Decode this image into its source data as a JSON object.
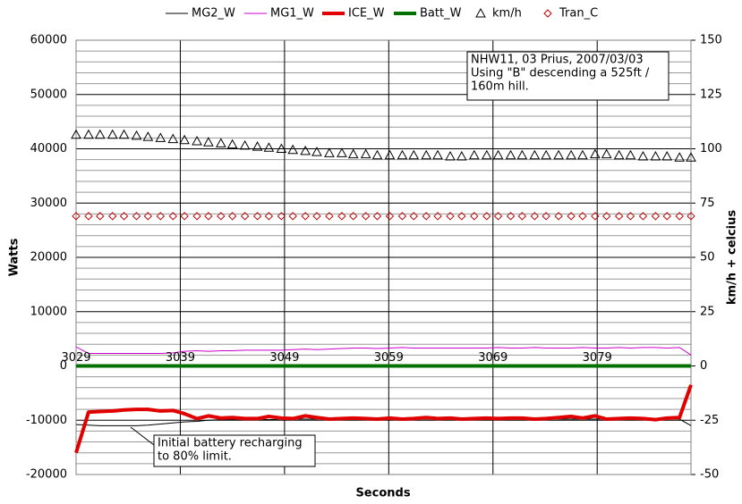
{
  "chart_data": {
    "type": "line",
    "x_label": "Seconds",
    "y_label": "Watts",
    "y2_label": "km/h + celcius",
    "x": [
      3029.0,
      3030.2,
      3031.3,
      3032.5,
      3033.6,
      3034.8,
      3035.9,
      3037.1,
      3038.3,
      3039.4,
      3040.6,
      3041.7,
      3042.9,
      3044.0,
      3045.2,
      3046.4,
      3047.5,
      3048.7,
      3049.8,
      3051.0,
      3052.1,
      3053.3,
      3054.5,
      3055.6,
      3056.8,
      3057.9,
      3059.1,
      3060.3,
      3061.4,
      3062.6,
      3063.7,
      3064.9,
      3066.0,
      3067.2,
      3068.4,
      3069.5,
      3070.7,
      3071.8,
      3073.0,
      3074.1,
      3075.3,
      3076.5,
      3077.6,
      3078.8,
      3079.9,
      3081.1,
      3082.2,
      3083.4,
      3084.6,
      3085.7,
      3086.9,
      3088.0
    ],
    "series": [
      {
        "name": "MG2_W",
        "color": "#000000",
        "style": "line",
        "width": 1,
        "values": [
          -10800,
          -10900,
          -11000,
          -11000,
          -11000,
          -11000,
          -10900,
          -10700,
          -10500,
          -10300,
          -10200,
          -10000,
          -9900,
          -9900,
          -9800,
          -9800,
          -9900,
          -9800,
          -9800,
          -9800,
          -9800,
          -9800,
          -9800,
          -9800,
          -9800,
          -9800,
          -9900,
          -9800,
          -9800,
          -9800,
          -9800,
          -9800,
          -9800,
          -9900,
          -9800,
          -9800,
          -9800,
          -9800,
          -9800,
          -9800,
          -9800,
          -9800,
          -9800,
          -9800,
          -9800,
          -9800,
          -9900,
          -9800,
          -9800,
          -9800,
          -9800,
          -11000
        ]
      },
      {
        "name": "MG1_W",
        "color": "#cc00cc",
        "style": "line",
        "width": 1,
        "values": [
          3500,
          2300,
          2300,
          2300,
          2300,
          2300,
          2300,
          2300,
          2400,
          2700,
          2800,
          2700,
          2800,
          2800,
          2900,
          2900,
          2900,
          2900,
          3000,
          3100,
          3000,
          3100,
          3200,
          3300,
          3300,
          3200,
          3300,
          3400,
          3300,
          3300,
          3300,
          3300,
          3300,
          3300,
          3300,
          3400,
          3300,
          3300,
          3400,
          3300,
          3300,
          3300,
          3400,
          3300,
          3300,
          3400,
          3300,
          3400,
          3400,
          3300,
          3400,
          2000
        ]
      },
      {
        "name": "ICE_W",
        "color": "#e00000",
        "style": "line",
        "width": 4,
        "values": [
          -16000,
          -8500,
          -8400,
          -8300,
          -8100,
          -8000,
          -8000,
          -8300,
          -8200,
          -8800,
          -9700,
          -9200,
          -9600,
          -9500,
          -9700,
          -9700,
          -9300,
          -9600,
          -9700,
          -9200,
          -9500,
          -9800,
          -9700,
          -9600,
          -9700,
          -9800,
          -9600,
          -9800,
          -9700,
          -9500,
          -9700,
          -9600,
          -9800,
          -9700,
          -9600,
          -9700,
          -9600,
          -9600,
          -9800,
          -9700,
          -9500,
          -9300,
          -9600,
          -9200,
          -9800,
          -9700,
          -9600,
          -9700,
          -9900,
          -9600,
          -9500,
          -3500
        ]
      },
      {
        "name": "Batt_W",
        "color": "#007000",
        "style": "line",
        "width": 4,
        "values": [
          0,
          0,
          0,
          0,
          0,
          0,
          0,
          0,
          0,
          0,
          0,
          0,
          0,
          0,
          0,
          0,
          0,
          0,
          0,
          0,
          0,
          0,
          0,
          0,
          0,
          0,
          0,
          0,
          0,
          0,
          0,
          0,
          0,
          0,
          0,
          0,
          0,
          0,
          0,
          0,
          0,
          0,
          0,
          0,
          0,
          0,
          0,
          0,
          0,
          0,
          0,
          0
        ]
      },
      {
        "name": "km/h",
        "color": "#000000",
        "style": "triangle",
        "axis": "y2",
        "values": [
          106.5,
          106.5,
          106.5,
          106.5,
          106.5,
          106,
          105.5,
          105,
          104.5,
          104,
          103.5,
          103,
          102.5,
          102,
          101.5,
          101,
          100.5,
          100,
          99.5,
          99,
          98.5,
          98,
          98,
          97.5,
          97.5,
          97,
          97,
          97,
          97,
          97,
          97,
          96.5,
          96.5,
          97,
          97,
          97,
          97,
          97,
          97,
          97,
          97,
          97,
          97,
          97.5,
          97.5,
          97,
          97,
          96.5,
          96.5,
          96.5,
          96,
          96
        ]
      },
      {
        "name": "Tran_C",
        "color": "#c00000",
        "style": "diamond",
        "axis": "y2",
        "values": [
          69,
          69,
          69,
          69,
          69,
          69,
          69,
          69,
          69,
          69,
          69,
          69,
          69,
          69,
          69,
          69,
          69,
          69,
          69,
          69,
          69,
          69,
          69,
          69,
          69,
          69,
          69,
          69,
          69,
          69,
          69,
          69,
          69,
          69,
          69,
          69,
          69,
          69,
          69,
          69,
          69,
          69,
          69,
          69,
          69,
          69,
          69,
          69,
          69,
          69,
          69,
          69
        ]
      }
    ],
    "xlim": [
      3029,
      3088
    ],
    "xticks": [
      3029,
      3039,
      3049,
      3059,
      3069,
      3079
    ],
    "ylim": [
      -20000,
      60000
    ],
    "yticks": [
      -20000,
      -10000,
      0,
      10000,
      20000,
      30000,
      40000,
      50000,
      60000
    ],
    "y2lim": [
      -50,
      150
    ],
    "y2ticks": [
      -50,
      -25,
      0,
      25,
      50,
      75,
      100,
      125,
      150
    ],
    "grid": true,
    "legend": "top",
    "annotations": [
      {
        "lines": [
          "NHW11, 03 Prius, 2007/03/03",
          "Using \"B\" descending a 525ft /",
          "160m hill."
        ]
      },
      {
        "lines": [
          "Initial battery recharging",
          "to 80% limit."
        ]
      }
    ]
  }
}
